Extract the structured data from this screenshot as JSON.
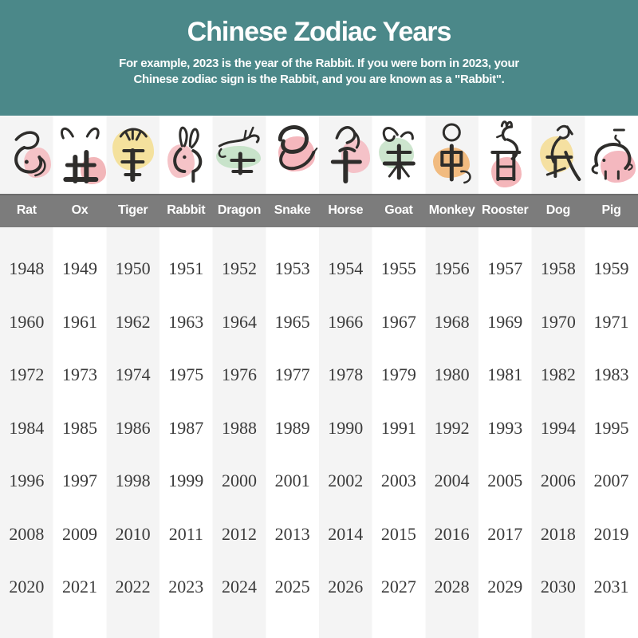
{
  "header": {
    "title": "Chinese Zodiac Years",
    "subtitle_line1": "For example, 2023 is the year of the Rabbit. If you were born in 2023, your",
    "subtitle_line2": "Chinese zodiac sign is the Rabbit, and you are known as a \"Rabbit\".",
    "background_color": "#4b8889",
    "text_color": "#ffffff"
  },
  "zodiac": {
    "names_bar_color": "#7c7c7c",
    "names_text_color": "#ffffff",
    "stripe_color": "#f4f4f4",
    "ink_color": "#2e2d2b",
    "animals": [
      {
        "id": "rat",
        "label": "Rat",
        "icon": "rat-brush-icon",
        "blob_color": "#f3b9bd"
      },
      {
        "id": "ox",
        "label": "Ox",
        "icon": "ox-brush-icon",
        "blob_color": "#f0a9ad"
      },
      {
        "id": "tiger",
        "label": "Tiger",
        "icon": "tiger-brush-icon",
        "blob_color": "#f3dd8d"
      },
      {
        "id": "rabbit",
        "label": "Rabbit",
        "icon": "rabbit-brush-icon",
        "blob_color": "#f3b9bd"
      },
      {
        "id": "dragon",
        "label": "Dragon",
        "icon": "dragon-brush-icon",
        "blob_color": "#bfdfc2"
      },
      {
        "id": "snake",
        "label": "Snake",
        "icon": "snake-brush-icon",
        "blob_color": "#f3aab2"
      },
      {
        "id": "horse",
        "label": "Horse",
        "icon": "horse-brush-icon",
        "blob_color": "#f4b9c0"
      },
      {
        "id": "goat",
        "label": "Goat",
        "icon": "goat-brush-icon",
        "blob_color": "#c4e0c6"
      },
      {
        "id": "monkey",
        "label": "Monkey",
        "icon": "monkey-brush-icon",
        "blob_color": "#f0b06b"
      },
      {
        "id": "rooster",
        "label": "Rooster",
        "icon": "rooster-brush-icon",
        "blob_color": "#f2a9ae"
      },
      {
        "id": "dog",
        "label": "Dog",
        "icon": "dog-brush-icon",
        "blob_color": "#f5dc92"
      },
      {
        "id": "pig",
        "label": "Pig",
        "icon": "pig-brush-icon",
        "blob_color": "#f2abb4"
      }
    ]
  },
  "years": {
    "text_color": "#3b3b3b"
  },
  "chart_data": {
    "type": "table",
    "title": "Chinese Zodiac Years",
    "columns": [
      "Rat",
      "Ox",
      "Tiger",
      "Rabbit",
      "Dragon",
      "Snake",
      "Horse",
      "Goat",
      "Monkey",
      "Rooster",
      "Dog",
      "Pig"
    ],
    "rows": [
      [
        1948,
        1949,
        1950,
        1951,
        1952,
        1953,
        1954,
        1955,
        1956,
        1957,
        1958,
        1959
      ],
      [
        1960,
        1961,
        1962,
        1963,
        1964,
        1965,
        1966,
        1967,
        1968,
        1969,
        1970,
        1971
      ],
      [
        1972,
        1973,
        1974,
        1975,
        1976,
        1977,
        1978,
        1979,
        1980,
        1981,
        1982,
        1983
      ],
      [
        1984,
        1985,
        1986,
        1987,
        1988,
        1989,
        1990,
        1991,
        1992,
        1993,
        1994,
        1995
      ],
      [
        1996,
        1997,
        1998,
        1999,
        2000,
        2001,
        2002,
        2003,
        2004,
        2005,
        2006,
        2007
      ],
      [
        2008,
        2009,
        2010,
        2011,
        2012,
        2013,
        2014,
        2015,
        2016,
        2017,
        2018,
        2019
      ],
      [
        2020,
        2021,
        2022,
        2023,
        2024,
        2025,
        2026,
        2027,
        2028,
        2029,
        2030,
        2031
      ]
    ]
  }
}
